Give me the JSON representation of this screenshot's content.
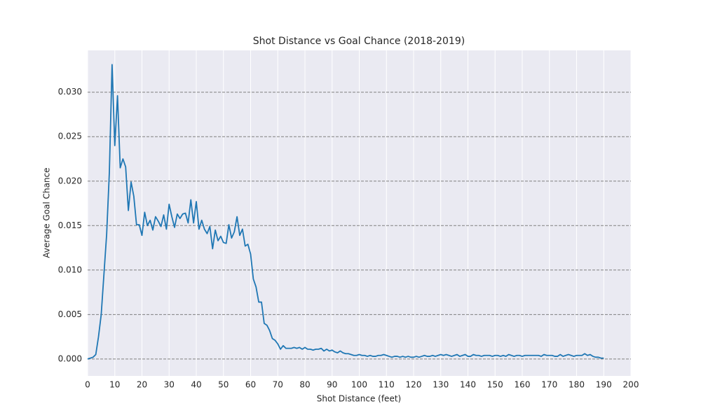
{
  "chart_data": {
    "type": "line",
    "title": "Shot Distance vs Goal Chance (2018-2019)",
    "x_label": "Shot Distance (feet)",
    "y_label": "Average Goal Chance",
    "grid": true,
    "xlim": [
      0,
      200
    ],
    "ylim": [
      -0.0019,
      0.0347
    ],
    "xticks": [
      0,
      10,
      20,
      30,
      40,
      50,
      60,
      70,
      80,
      90,
      100,
      110,
      120,
      130,
      140,
      150,
      160,
      170,
      180,
      190,
      200
    ],
    "yticks": [
      {
        "value": 0,
        "label": "0.000"
      },
      {
        "value": 0.005,
        "label": "0.005"
      },
      {
        "value": 0.01,
        "label": "0.010"
      },
      {
        "value": 0.015,
        "label": "0.015"
      },
      {
        "value": 0.02,
        "label": "0.020"
      },
      {
        "value": 0.025,
        "label": "0.025"
      },
      {
        "value": 0.03,
        "label": "0.030"
      }
    ],
    "x": [
      0,
      1,
      2,
      3,
      4,
      5,
      6,
      7,
      8,
      9,
      10,
      11,
      12,
      13,
      14,
      15,
      16,
      17,
      18,
      19,
      20,
      21,
      22,
      23,
      24,
      25,
      26,
      27,
      28,
      29,
      30,
      31,
      32,
      33,
      34,
      35,
      36,
      37,
      38,
      39,
      40,
      41,
      42,
      43,
      44,
      45,
      46,
      47,
      48,
      49,
      50,
      51,
      52,
      53,
      54,
      55,
      56,
      57,
      58,
      59,
      60,
      61,
      62,
      63,
      64,
      65,
      66,
      67,
      68,
      69,
      70,
      71,
      72,
      73,
      74,
      75,
      76,
      77,
      78,
      79,
      80,
      81,
      82,
      83,
      84,
      85,
      86,
      87,
      88,
      89,
      90,
      91,
      92,
      93,
      94,
      95,
      96,
      97,
      98,
      99,
      100,
      101,
      102,
      103,
      104,
      105,
      106,
      107,
      108,
      109,
      110,
      111,
      112,
      113,
      114,
      115,
      116,
      117,
      118,
      119,
      120,
      121,
      122,
      123,
      124,
      125,
      126,
      127,
      128,
      129,
      130,
      131,
      132,
      133,
      134,
      135,
      136,
      137,
      138,
      139,
      140,
      141,
      142,
      143,
      144,
      145,
      146,
      147,
      148,
      149,
      150,
      151,
      152,
      153,
      154,
      155,
      156,
      157,
      158,
      159,
      160,
      161,
      162,
      163,
      164,
      165,
      166,
      167,
      168,
      169,
      170,
      171,
      172,
      173,
      174,
      175,
      176,
      177,
      178,
      179,
      180,
      181,
      182,
      183,
      184,
      185,
      186,
      187,
      188,
      189,
      190
    ],
    "series": [
      {
        "name": "Average Goal Chance",
        "color": "#1f77b4",
        "values": [
          0.0,
          0.0001,
          0.0002,
          0.0005,
          0.0025,
          0.005,
          0.0095,
          0.014,
          0.021,
          0.0331,
          0.024,
          0.0296,
          0.0215,
          0.0225,
          0.0216,
          0.0167,
          0.0199,
          0.0183,
          0.0151,
          0.0151,
          0.0139,
          0.0165,
          0.015,
          0.0156,
          0.0145,
          0.016,
          0.0155,
          0.0149,
          0.0162,
          0.0146,
          0.0174,
          0.016,
          0.0148,
          0.0163,
          0.0158,
          0.0163,
          0.0164,
          0.0153,
          0.0179,
          0.0153,
          0.0177,
          0.0146,
          0.0156,
          0.0146,
          0.0141,
          0.0149,
          0.0124,
          0.0145,
          0.0133,
          0.0138,
          0.0131,
          0.013,
          0.0151,
          0.0136,
          0.0143,
          0.016,
          0.0139,
          0.0146,
          0.0127,
          0.0129,
          0.0118,
          0.009,
          0.0081,
          0.0064,
          0.0064,
          0.004,
          0.0038,
          0.0032,
          0.0023,
          0.0021,
          0.0017,
          0.0011,
          0.0015,
          0.0012,
          0.0012,
          0.0012,
          0.0013,
          0.0012,
          0.0013,
          0.0011,
          0.0013,
          0.0011,
          0.0011,
          0.001,
          0.0011,
          0.0011,
          0.0012,
          0.0009,
          0.0011,
          0.0009,
          0.001,
          0.0008,
          0.0007,
          0.0009,
          0.0007,
          0.0006,
          0.0006,
          0.0005,
          0.0004,
          0.0004,
          0.0005,
          0.0004,
          0.0004,
          0.0003,
          0.0004,
          0.0003,
          0.0003,
          0.0004,
          0.0004,
          0.0005,
          0.0004,
          0.0003,
          0.0002,
          0.0003,
          0.0003,
          0.0002,
          0.0003,
          0.0002,
          0.0003,
          0.0002,
          0.0002,
          0.0003,
          0.0002,
          0.0003,
          0.0004,
          0.0003,
          0.0003,
          0.0004,
          0.0003,
          0.0004,
          0.0005,
          0.0004,
          0.0005,
          0.0004,
          0.0003,
          0.0004,
          0.0005,
          0.0003,
          0.0004,
          0.0005,
          0.0003,
          0.0003,
          0.0005,
          0.0004,
          0.0004,
          0.0003,
          0.0004,
          0.0004,
          0.0004,
          0.0003,
          0.0004,
          0.0004,
          0.0003,
          0.0004,
          0.0003,
          0.0005,
          0.0004,
          0.0003,
          0.0004,
          0.0004,
          0.0003,
          0.0004,
          0.0004,
          0.0004,
          0.0004,
          0.0004,
          0.0004,
          0.0003,
          0.0005,
          0.0004,
          0.0004,
          0.0004,
          0.0003,
          0.0003,
          0.0005,
          0.0003,
          0.0004,
          0.0005,
          0.0004,
          0.0003,
          0.0004,
          0.0004,
          0.0004,
          0.0006,
          0.0004,
          0.0005,
          0.0003,
          0.0002,
          0.0002,
          0.0001,
          0.0001
        ]
      }
    ]
  }
}
